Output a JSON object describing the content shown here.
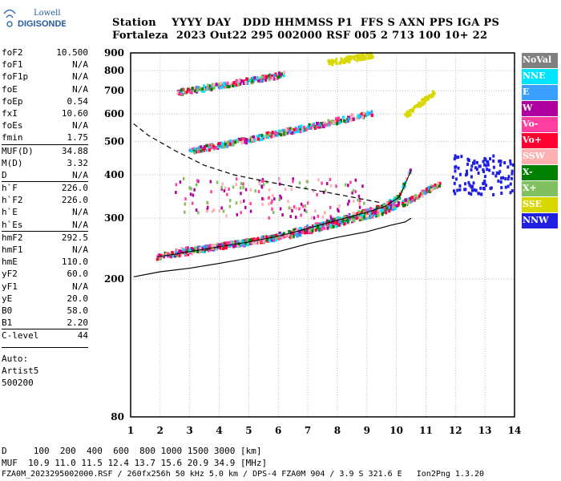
{
  "logo": {
    "line1": "Lowell",
    "line2": "DIGISONDE"
  },
  "header": {
    "row1": "Station    YYYY DAY   DDD HHMMSS P1  FFS S AXN PPS IGA PS",
    "row2": "Fortaleza  2023 Out22 295 002000 RSF 005 2 713 100 10+ 22"
  },
  "params": [
    {
      "k": "foF2",
      "v": "10.500"
    },
    {
      "k": "foF1",
      "v": "N/A"
    },
    {
      "k": "foF1p",
      "v": "N/A"
    },
    {
      "k": "foE",
      "v": "N/A"
    },
    {
      "k": "foEp",
      "v": "0.54"
    },
    {
      "k": "fxI",
      "v": "10.60"
    },
    {
      "k": "foEs",
      "v": "N/A"
    },
    {
      "k": "fmin",
      "v": "1.75"
    },
    {
      "k": "MUF(D)",
      "v": "34.88",
      "sep": true
    },
    {
      "k": "M(D)",
      "v": "3.32"
    },
    {
      "k": "D",
      "v": "N/A"
    },
    {
      "k": "h`F",
      "v": "226.0",
      "sep": true
    },
    {
      "k": "h`F2",
      "v": "226.0"
    },
    {
      "k": "h`E",
      "v": "N/A"
    },
    {
      "k": "h`Es",
      "v": "N/A"
    },
    {
      "k": "hmF2",
      "v": "292.5",
      "sep": true
    },
    {
      "k": "hmF1",
      "v": "N/A"
    },
    {
      "k": "hmE",
      "v": "110.0"
    },
    {
      "k": "yF2",
      "v": "60.0"
    },
    {
      "k": "yF1",
      "v": "N/A"
    },
    {
      "k": "yE",
      "v": "20.0"
    },
    {
      "k": "B0",
      "v": "58.0"
    },
    {
      "k": "B1",
      "v": "2.20"
    },
    {
      "k": "C-level",
      "v": "44",
      "sep": true
    }
  ],
  "auto": [
    "Auto:",
    "Artist5",
    "500200"
  ],
  "legend": [
    {
      "label": "NoVal",
      "color": "#808080"
    },
    {
      "label": "NNE",
      "color": "#00e5ff"
    },
    {
      "label": "E",
      "color": "#3aa0ff"
    },
    {
      "label": "W",
      "color": "#b000a0"
    },
    {
      "label": "Vo-",
      "color": "#ff3fa0"
    },
    {
      "label": "Vo+",
      "color": "#ff0030"
    },
    {
      "label": "SSW",
      "color": "#ffb0b0"
    },
    {
      "label": "X-",
      "color": "#008000"
    },
    {
      "label": "X+",
      "color": "#80c060"
    },
    {
      "label": "SSE",
      "color": "#d8d800"
    },
    {
      "label": "NNW",
      "color": "#2020e0"
    }
  ],
  "bottom": {
    "line1": "D     100  200  400  600  800 1000 1500 3000 [km]",
    "line2": "MUF  10.9 11.0 11.5 12.4 13.7 15.6 20.9 34.9 [MHz]",
    "line3": "FZA0M_2023295002000.RSF / 260fx256h 50 kHz 5.0 km / DPS-4 FZA0M 904 / 3.9 S 321.6 E   Ion2Png 1.3.20"
  },
  "chart_data": {
    "type": "scatter",
    "title": "",
    "xlabel": "",
    "ylabel": "",
    "xlim": [
      1,
      14
    ],
    "ylim": [
      80,
      900
    ],
    "xticks": [
      1,
      2,
      3,
      4,
      5,
      6,
      7,
      8,
      9,
      10,
      11,
      12,
      13,
      14
    ],
    "yticks": [
      80,
      200,
      300,
      400,
      500,
      600,
      700,
      800,
      900
    ],
    "y_scale": "logarithmic",
    "grid": true,
    "legend_position": "right",
    "traces": [
      {
        "name": "F2 O-trace",
        "color": "#ff0030",
        "x": [
          1.9,
          2.5,
          3,
          4,
          5,
          6,
          7,
          8,
          9,
          9.6,
          10.1,
          10.5
        ],
        "y": [
          232,
          236,
          240,
          248,
          256,
          266,
          280,
          296,
          312,
          324,
          345,
          412
        ]
      },
      {
        "name": "F2 X-trace",
        "color": "#80c060",
        "x": [
          2.5,
          3.5,
          5,
          6.5,
          8,
          9.5,
          10.5,
          11.5
        ],
        "y": [
          240,
          245,
          255,
          268,
          290,
          312,
          338,
          378
        ]
      },
      {
        "name": "2-hop echo",
        "color": "#ff0030",
        "x": [
          3,
          4,
          5,
          6,
          7,
          8,
          9.2
        ],
        "y": [
          468,
          485,
          505,
          527,
          548,
          572,
          603
        ]
      },
      {
        "name": "3-hop echo",
        "color": "#ff0030",
        "x": [
          2.6,
          3.5,
          4.5,
          5.5,
          6.2
        ],
        "y": [
          692,
          710,
          735,
          760,
          778
        ]
      },
      {
        "name": "Oblique SSE",
        "color": "#d8d800",
        "x": [
          10.3,
          11.3
        ],
        "y": [
          590,
          690
        ]
      },
      {
        "name": "Oblique SSE",
        "color": "#d8d800",
        "x": [
          7.7,
          9.2
        ],
        "y": [
          840,
          888
        ]
      },
      {
        "name": "Spread NNW",
        "color": "#2020e0",
        "x": [
          11.9,
          14
        ],
        "y": [
          350,
          455
        ]
      }
    ],
    "profile_curve": {
      "x": [
        1.1,
        2,
        3,
        4,
        5,
        6,
        7,
        8,
        9,
        9.8,
        10.3,
        10.5
      ],
      "y": [
        203,
        210,
        215,
        222,
        230,
        240,
        253,
        264,
        274,
        286,
        292.5,
        300
      ]
    },
    "dashed_curve": {
      "x": [
        1.1,
        1.6,
        2.5,
        3.5,
        4.5,
        5.5,
        6.5,
        7.5,
        8.5,
        9.5
      ],
      "y": [
        562,
        520,
        470,
        426,
        400,
        384,
        370,
        358,
        345,
        332
      ]
    }
  }
}
